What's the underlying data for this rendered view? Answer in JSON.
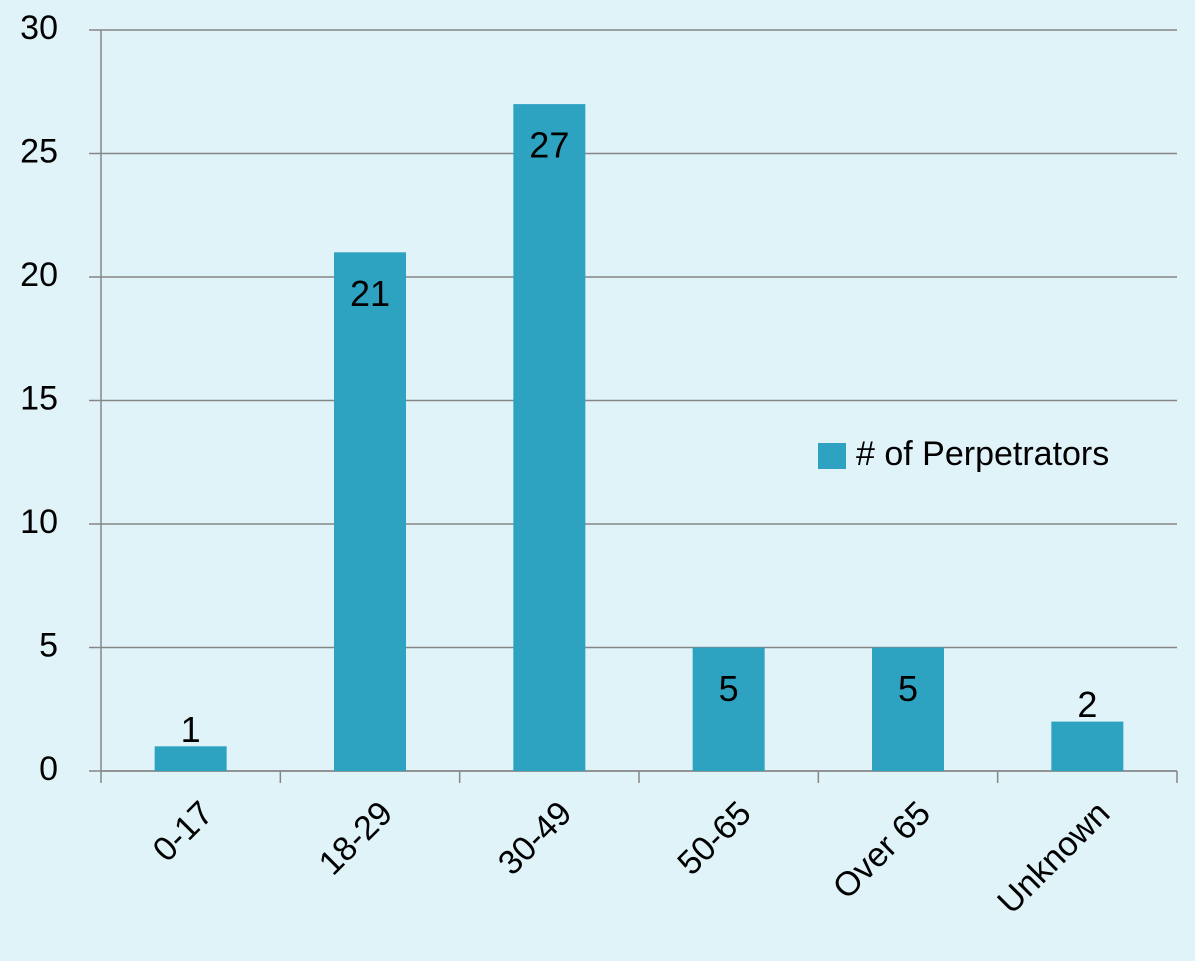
{
  "chart_data": {
    "type": "bar",
    "categories": [
      "0-17",
      "18-29",
      "30-49",
      "50-65",
      "Over 65",
      "Unknown"
    ],
    "series": [
      {
        "name": "# of Perpetrators",
        "color": "#2ea3c1",
        "values": [
          1,
          21,
          27,
          5,
          5,
          2
        ]
      }
    ],
    "ylim": [
      0,
      30
    ],
    "yticks": [
      0,
      5,
      10,
      15,
      20,
      25,
      30
    ],
    "grid": true,
    "legend": "right"
  }
}
